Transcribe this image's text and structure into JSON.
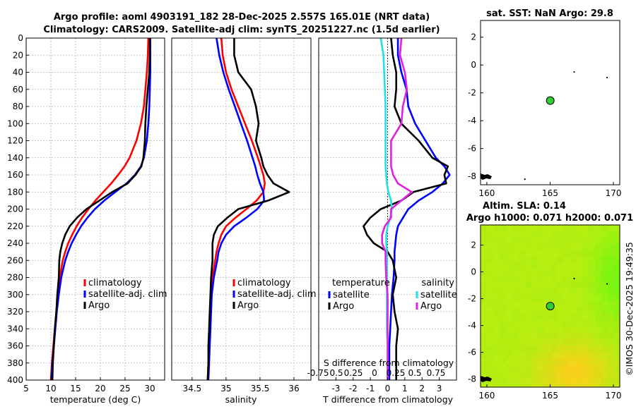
{
  "header": {
    "line1": "Argo profile: aoml 4903191_182 28-Dec-2025 2.557S 165.01E (NRT data)",
    "line2": "Climatology: CARS2009. Satellite-adj clim: synTS_20251227.nc (1.5d earlier)"
  },
  "colors": {
    "climatology": "#ff0000",
    "satellite": "#0000ff",
    "argo": "#000000",
    "salinity_satellite": "#22e0e8",
    "salinity_argo": "#e020e0",
    "float_marker": "#33cc33",
    "sla_field": "#b4ee10"
  },
  "chart_data": [
    {
      "type": "line",
      "title": "",
      "xlabel": "temperature (deg C)",
      "ylabel": "",
      "xlim": [
        5,
        33
      ],
      "ylim": [
        400,
        0
      ],
      "x_ticks": [
        "5",
        "10",
        "15",
        "20",
        "25",
        "30"
      ],
      "y_ticks": [
        "0",
        "20",
        "40",
        "60",
        "80",
        "100",
        "120",
        "140",
        "160",
        "180",
        "200",
        "220",
        "240",
        "260",
        "280",
        "300",
        "320",
        "340",
        "360",
        "380",
        "400"
      ],
      "depth": [
        0,
        20,
        40,
        60,
        80,
        100,
        120,
        140,
        150,
        160,
        170,
        180,
        190,
        200,
        210,
        220,
        230,
        240,
        250,
        260,
        280,
        300,
        320,
        340,
        360,
        380,
        400
      ],
      "series": [
        {
          "name": "climatology",
          "values": [
            29.7,
            29.6,
            29.4,
            29.1,
            28.8,
            28.2,
            27.3,
            25.9,
            24.9,
            23.6,
            22.2,
            20.6,
            19.0,
            17.6,
            16.3,
            15.2,
            14.3,
            13.5,
            12.9,
            12.4,
            11.8,
            11.4,
            11.1,
            10.8,
            10.5,
            10.2,
            10.0
          ]
        },
        {
          "name": "satellite-adj. clim",
          "values": [
            30.1,
            30.1,
            30.1,
            30.0,
            29.9,
            29.7,
            29.4,
            28.8,
            28.2,
            27.0,
            25.3,
            23.0,
            20.8,
            18.9,
            17.4,
            16.1,
            15.1,
            14.2,
            13.5,
            12.9,
            12.1,
            11.6,
            11.2,
            10.9,
            10.6,
            10.3,
            10.1
          ]
        },
        {
          "name": "Argo",
          "values": [
            30.0,
            30.0,
            29.9,
            29.6,
            29.3,
            29.1,
            29.0,
            28.7,
            28.3,
            27.1,
            25.5,
            22.4,
            19.8,
            17.2,
            15.3,
            13.8,
            12.9,
            12.3,
            11.9,
            11.7,
            11.6,
            11.3,
            11.1,
            10.8,
            10.6,
            10.4,
            10.3
          ]
        }
      ],
      "legend": [
        "climatology",
        "satellite-adj. clim",
        "Argo"
      ],
      "legend_position": "lower-right"
    },
    {
      "type": "line",
      "title": "",
      "xlabel": "salinity",
      "ylabel": "",
      "xlim": [
        34.2,
        36.25
      ],
      "ylim": [
        400,
        0
      ],
      "x_ticks": [
        "34.5",
        "35",
        "35.5",
        "36"
      ],
      "depth": [
        0,
        20,
        40,
        60,
        80,
        100,
        120,
        140,
        150,
        160,
        170,
        180,
        190,
        200,
        210,
        220,
        230,
        240,
        250,
        260,
        280,
        300,
        320,
        340,
        360,
        380,
        400
      ],
      "series": [
        {
          "name": "climatology",
          "values": [
            34.93,
            34.95,
            35.0,
            35.08,
            35.18,
            35.28,
            35.38,
            35.47,
            35.51,
            35.55,
            35.57,
            35.55,
            35.45,
            35.3,
            35.14,
            35.0,
            34.93,
            34.89,
            34.86,
            34.84,
            34.8,
            34.78,
            34.77,
            34.76,
            34.75,
            34.74,
            34.73
          ]
        },
        {
          "name": "satellite-adj. clim",
          "values": [
            34.86,
            34.9,
            34.96,
            35.04,
            35.13,
            35.22,
            35.31,
            35.39,
            35.43,
            35.46,
            35.5,
            35.55,
            35.56,
            35.46,
            35.3,
            35.12,
            35.0,
            34.93,
            34.89,
            34.87,
            34.82,
            34.79,
            34.78,
            34.77,
            34.76,
            34.75,
            34.74
          ]
        },
        {
          "name": "Argo",
          "values": [
            35.12,
            35.12,
            35.18,
            35.37,
            35.44,
            35.48,
            35.44,
            35.52,
            35.55,
            35.61,
            35.7,
            35.93,
            35.62,
            35.18,
            35.02,
            34.88,
            34.82,
            34.8,
            34.8,
            34.8,
            34.78,
            34.77,
            34.76,
            34.75,
            34.74,
            34.74,
            34.73
          ]
        }
      ],
      "legend": [
        "climatology",
        "satellite-adj. clim",
        "Argo"
      ],
      "legend_position": "lower-right"
    },
    {
      "type": "line",
      "title": "",
      "xlabel": "T difference from climatology",
      "top_label": "S difference from climatology",
      "ylabel": "",
      "xlim": [
        -4,
        4
      ],
      "ylim": [
        400,
        0
      ],
      "x_ticks": [
        "-3",
        "-2",
        "-1",
        "0",
        "1",
        "2",
        "3"
      ],
      "top_ticks": [
        "-0.75",
        "0.5",
        "0.25",
        "0",
        "0.25",
        "0.5",
        "0.75"
      ],
      "depth": [
        0,
        20,
        40,
        60,
        80,
        100,
        120,
        140,
        150,
        160,
        170,
        180,
        190,
        200,
        210,
        220,
        230,
        240,
        250,
        260,
        280,
        300,
        320,
        340,
        360,
        380,
        400
      ],
      "series": [
        {
          "name": "temperature satellite",
          "group": "temperature",
          "values": [
            0.6,
            0.6,
            0.8,
            1.1,
            1.2,
            1.6,
            2.2,
            2.8,
            3.3,
            3.6,
            3.2,
            2.6,
            1.8,
            1.2,
            0.9,
            0.6,
            0.5,
            0.45,
            0.4,
            0.4,
            0.35,
            0.25,
            0.2,
            0.15,
            0.1,
            0.1,
            0.1
          ]
        },
        {
          "name": "temperature Argo",
          "group": "temperature",
          "values": [
            0.2,
            0.3,
            0.5,
            0.5,
            0.4,
            0.8,
            1.8,
            2.6,
            3.5,
            3.3,
            3.4,
            1.5,
            0.8,
            -0.4,
            -1.0,
            -1.4,
            -1.2,
            -0.8,
            0.0,
            0.3,
            0.5,
            0.3,
            0.4,
            0.6,
            0.5,
            0.5,
            0.5
          ]
        },
        {
          "name": "salinity satellite",
          "group": "salinity",
          "values": [
            -0.1,
            -0.06,
            -0.05,
            -0.04,
            -0.03,
            -0.03,
            -0.03,
            -0.03,
            -0.03,
            -0.02,
            -0.01,
            0.01,
            0.05,
            0.06,
            0.04,
            0.0,
            -0.02,
            -0.02,
            -0.01,
            -0.01,
            -0.01,
            -0.01,
            -0.01,
            -0.01,
            0.0,
            0.0,
            0.0
          ]
        },
        {
          "name": "salinity Argo",
          "group": "salinity",
          "values": [
            0.2,
            0.18,
            0.25,
            0.28,
            0.22,
            0.2,
            0.05,
            0.05,
            0.05,
            0.08,
            0.15,
            0.35,
            0.2,
            0.05,
            0.05,
            -0.04,
            -0.08,
            -0.08,
            -0.03,
            -0.03,
            -0.02,
            0.0,
            0.0,
            0.0,
            0.0,
            0.0,
            0.0
          ]
        }
      ],
      "legend_headers": [
        "temperature",
        "salinity"
      ],
      "legend": [
        "satellite",
        "Argo",
        "satellite",
        "Argo"
      ],
      "legend_position": "lower-center"
    },
    {
      "type": "scatter",
      "title": "sat. SST: NaN Argo: 29.8",
      "xlim": [
        159.5,
        170.5
      ],
      "ylim": [
        -8.6,
        3.2
      ],
      "x_ticks": [
        "160",
        "165",
        "170"
      ],
      "y_ticks": [
        "2",
        "0",
        "-2",
        "-4",
        "-6",
        "-8"
      ],
      "points": [
        {
          "name": "Argo float",
          "x": 165.01,
          "y": -2.557
        }
      ],
      "islands": [
        {
          "x": 166.9,
          "y": -0.5
        },
        {
          "x": 169.5,
          "y": -0.9
        },
        {
          "x": 163.0,
          "y": -8.2
        }
      ]
    },
    {
      "type": "heatmap",
      "title_line1": "Altim. SLA: 0.14",
      "title_line2": "Argo h1000: 0.071 h2000: 0.071",
      "xlim": [
        159.5,
        170.5
      ],
      "ylim": [
        -8.6,
        3.5
      ],
      "x_ticks": [
        "160",
        "165",
        "170"
      ],
      "y_ticks": [
        "2",
        "0",
        "-2",
        "-4",
        "-6",
        "-8"
      ],
      "points": [
        {
          "name": "Argo float",
          "x": 165.01,
          "y": -2.557
        }
      ],
      "islands": [
        {
          "x": 166.9,
          "y": -0.5
        },
        {
          "x": 169.5,
          "y": -0.9
        }
      ]
    }
  ],
  "stamp": "©IMOS 30-Dec-2025 19:49:35"
}
